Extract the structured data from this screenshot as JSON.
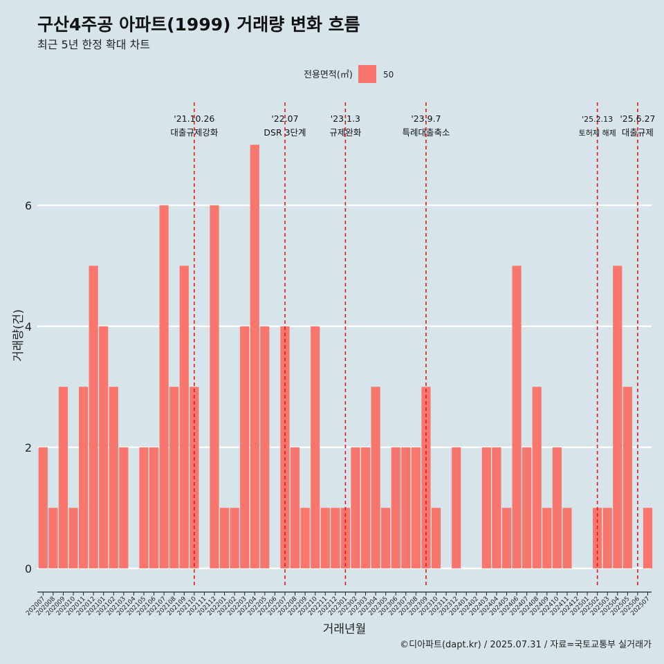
{
  "title": "구산4주공 아파트(1999) 거래량 변화 흐름",
  "subtitle": "최근 5년 한정 확대 차트",
  "caption": "©디아파트(dapt.kr) / 2025.07.31 / 자료=국토교통부 실거래가",
  "colors": {
    "bar": "#f8766d",
    "background": "#d7e4ea",
    "grid": "#ffffff",
    "event_line": "#e8141b"
  },
  "legend": {
    "title": "전용면적(㎡)",
    "entries": [
      "50"
    ]
  },
  "chart_data": {
    "type": "bar",
    "categories": [
      "202007",
      "202008",
      "202009",
      "202010",
      "202011",
      "202012",
      "202101",
      "202102",
      "202103",
      "202104",
      "202105",
      "202106",
      "202107",
      "202108",
      "202109",
      "202110",
      "202111",
      "202112",
      "202201",
      "202202",
      "202203",
      "202204",
      "202205",
      "202206",
      "202207",
      "202208",
      "202209",
      "202210",
      "202211",
      "202212",
      "202301",
      "202302",
      "202303",
      "202304",
      "202305",
      "202306",
      "202307",
      "202308",
      "202309",
      "202310",
      "202311",
      "202312",
      "202401",
      "202402",
      "202403",
      "202404",
      "202405",
      "202406",
      "202407",
      "202408",
      "202409",
      "202410",
      "202411",
      "202412",
      "202501",
      "202502",
      "202503",
      "202504",
      "202505",
      "202506",
      "202507"
    ],
    "series": [
      {
        "name": "50",
        "values": [
          2,
          1,
          3,
          1,
          3,
          5,
          4,
          3,
          2,
          0,
          2,
          2,
          6,
          3,
          5,
          3,
          0,
          6,
          1,
          1,
          4,
          7,
          4,
          0,
          4,
          2,
          1,
          4,
          1,
          1,
          1,
          2,
          2,
          3,
          1,
          2,
          2,
          2,
          3,
          1,
          0,
          2,
          0,
          0,
          2,
          2,
          1,
          5,
          2,
          3,
          1,
          2,
          1,
          0,
          0,
          1,
          1,
          5,
          3,
          0,
          1
        ]
      }
    ],
    "xlabel": "거래년월",
    "ylabel": "거래량(건)",
    "ylim": [
      -0.3,
      7.7
    ],
    "yticks": [
      0,
      2,
      4,
      6
    ],
    "grid": true,
    "legend_position": "top",
    "annotations": [
      {
        "x": "202110",
        "date": "'21.10.26",
        "label": "대출규제강화"
      },
      {
        "x": "202207",
        "date": "'22.07",
        "label": "DSR 3단계"
      },
      {
        "x": "202301",
        "date": "'23.1.3",
        "label": "규제완화"
      },
      {
        "x": "202309",
        "date": "'23.9.7",
        "label": "특례대출축소"
      },
      {
        "x": "202502",
        "date": "'25.2.13",
        "label": "토허제 해제"
      },
      {
        "x": "202506",
        "date": "'25.6.27",
        "label": "대출규제"
      }
    ]
  }
}
